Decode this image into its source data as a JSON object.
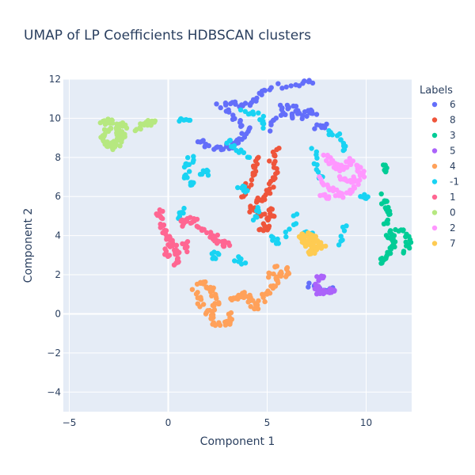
{
  "chart_data": {
    "type": "scatter",
    "title": "UMAP of LP Coefficients HDBSCAN clusters",
    "xlabel": "Component 1",
    "ylabel": "Component 2",
    "xlim": [
      -5.3,
      12.3
    ],
    "ylim": [
      -5,
      12
    ],
    "xticks": [
      -5,
      0,
      5,
      10
    ],
    "yticks": [
      -4,
      -2,
      0,
      2,
      4,
      6,
      8,
      10,
      12
    ],
    "grid": true,
    "legend": {
      "title": "Labels",
      "placement": "right"
    },
    "series": [
      {
        "name": "6",
        "color": "#636efa",
        "segments": [
          [
            [
              2.6,
              10.6
            ],
            [
              3.3,
              10.8
            ],
            [
              4.0,
              10.6
            ],
            [
              4.5,
              11.1
            ],
            [
              5.0,
              11.6
            ],
            [
              6.5,
              11.7
            ],
            [
              7.0,
              12.0
            ],
            [
              7.3,
              11.8
            ]
          ],
          [
            [
              5.8,
              10.7
            ],
            [
              6.2,
              10.5
            ],
            [
              7.0,
              10.4
            ],
            [
              7.5,
              10.2
            ]
          ],
          [
            [
              3.0,
              10.3
            ],
            [
              3.5,
              9.9
            ],
            [
              4.0,
              9.4
            ],
            [
              3.6,
              8.9
            ],
            [
              3.2,
              8.6
            ],
            [
              2.7,
              8.5
            ],
            [
              2.0,
              8.6
            ],
            [
              1.5,
              8.8
            ]
          ],
          [
            [
              5.0,
              9.5
            ],
            [
              5.7,
              10.3
            ],
            [
              6.3,
              10.1
            ],
            [
              7.0,
              10.1
            ]
          ],
          [
            [
              7.5,
              9.6
            ],
            [
              8.0,
              9.7
            ]
          ],
          [
            [
              7.1,
              1.5
            ],
            [
              7.7,
              1.1
            ],
            [
              8.3,
              1.2
            ]
          ]
        ]
      },
      {
        "name": "8",
        "color": "#ef553b",
        "segments": [
          [
            [
              5.5,
              8.4
            ],
            [
              5.2,
              7.9
            ],
            [
              5.4,
              7.3
            ],
            [
              5.2,
              6.6
            ],
            [
              5.0,
              6.1
            ],
            [
              4.5,
              5.8
            ],
            [
              4.2,
              5.3
            ],
            [
              4.9,
              5.0
            ],
            [
              5.0,
              4.5
            ],
            [
              4.6,
              4.3
            ]
          ],
          [
            [
              4.6,
              8.1
            ],
            [
              4.4,
              7.4
            ],
            [
              4.1,
              6.7
            ],
            [
              3.8,
              6.0
            ]
          ],
          [
            [
              5.3,
              5.4
            ],
            [
              5.2,
              5.0
            ]
          ]
        ]
      },
      {
        "name": "3",
        "color": "#00cc96",
        "segments": [
          [
            [
              10.8,
              6.0
            ],
            [
              11.0,
              5.6
            ],
            [
              11.1,
              5.0
            ],
            [
              10.9,
              4.6
            ]
          ],
          [
            [
              11.1,
              4.2
            ],
            [
              11.3,
              3.9
            ],
            [
              11.4,
              3.6
            ],
            [
              11.2,
              3.2
            ],
            [
              11.0,
              2.9
            ],
            [
              10.8,
              2.6
            ]
          ],
          [
            [
              11.6,
              4.4
            ],
            [
              12.0,
              4.0
            ],
            [
              12.2,
              3.6
            ],
            [
              11.9,
              3.2
            ]
          ],
          [
            [
              10.8,
              7.6
            ],
            [
              11.0,
              7.3
            ]
          ]
        ]
      },
      {
        "name": "5",
        "color": "#ab63fa",
        "segments": [
          [
            [
              7.4,
              1.5
            ],
            [
              7.6,
              1.1
            ],
            [
              7.9,
              1.1
            ],
            [
              8.2,
              1.1
            ],
            [
              8.4,
              1.2
            ]
          ],
          [
            [
              7.8,
              2.0
            ],
            [
              7.6,
              1.7
            ]
          ]
        ]
      },
      {
        "name": "4",
        "color": "#ffa15a",
        "segments": [
          [
            [
              1.5,
              1.7
            ],
            [
              1.9,
              1.5
            ],
            [
              2.2,
              1.1
            ],
            [
              2.5,
              0.7
            ],
            [
              2.3,
              0.3
            ],
            [
              2.1,
              -0.2
            ],
            [
              2.5,
              -0.5
            ],
            [
              3.1,
              -0.5
            ],
            [
              3.1,
              0.0
            ]
          ],
          [
            [
              1.3,
              1.1
            ],
            [
              1.6,
              0.7
            ],
            [
              1.9,
              0.0
            ]
          ],
          [
            [
              3.2,
              0.6
            ],
            [
              3.5,
              0.9
            ],
            [
              3.8,
              1.0
            ],
            [
              4.1,
              0.9
            ],
            [
              4.3,
              0.5
            ],
            [
              4.5,
              0.3
            ]
          ],
          [
            [
              4.6,
              0.6
            ],
            [
              5.0,
              1.0
            ],
            [
              5.3,
              1.4
            ],
            [
              5.6,
              1.8
            ],
            [
              5.9,
              2.3
            ],
            [
              6.0,
              2.0
            ]
          ],
          [
            [
              5.2,
              2.0
            ],
            [
              5.4,
              2.4
            ]
          ]
        ]
      },
      {
        "name": "-1",
        "color": "#19d3f3",
        "segments": [
          [
            [
              0.5,
              9.9
            ],
            [
              1.1,
              9.9
            ]
          ],
          [
            [
              1.2,
              8.1
            ],
            [
              1.0,
              7.6
            ],
            [
              0.9,
              7.0
            ],
            [
              1.2,
              6.6
            ]
          ],
          [
            [
              1.7,
              7.1
            ],
            [
              2.0,
              7.3
            ]
          ],
          [
            [
              0.5,
              5.0
            ],
            [
              0.8,
              5.4
            ]
          ],
          [
            [
              3.0,
              8.8
            ],
            [
              3.3,
              8.5
            ],
            [
              4.1,
              8.0
            ]
          ],
          [
            [
              4.6,
              5.4
            ],
            [
              4.3,
              4.8
            ]
          ],
          [
            [
              5.5,
              3.6
            ],
            [
              5.3,
              3.9
            ]
          ],
          [
            [
              3.6,
              6.5
            ],
            [
              4.0,
              6.3
            ]
          ],
          [
            [
              3.5,
              2.8
            ],
            [
              3.9,
              2.6
            ]
          ],
          [
            [
              2.2,
              2.9
            ],
            [
              2.5,
              3.1
            ]
          ],
          [
            [
              3.7,
              10.3
            ],
            [
              4.6,
              10.2
            ],
            [
              4.8,
              9.5
            ]
          ],
          [
            [
              7.3,
              8.4
            ],
            [
              7.6,
              7.3
            ],
            [
              7.8,
              7.0
            ]
          ],
          [
            [
              8.1,
              9.3
            ],
            [
              8.6,
              9.0
            ],
            [
              8.9,
              8.4
            ]
          ],
          [
            [
              9.8,
              6.0
            ],
            [
              10.0,
              5.9
            ]
          ],
          [
            [
              6.0,
              4.0
            ],
            [
              6.5,
              5.1
            ]
          ],
          [
            [
              8.7,
              3.5
            ],
            [
              9.0,
              4.5
            ]
          ],
          [
            [
              7.4,
              4.0
            ],
            [
              6.8,
              4.1
            ]
          ]
        ]
      },
      {
        "name": "1",
        "color": "#ff6692",
        "segments": [
          [
            [
              -0.4,
              5.4
            ],
            [
              -0.5,
              5.0
            ],
            [
              -0.3,
              4.5
            ],
            [
              -0.2,
              4.1
            ],
            [
              0.0,
              3.8
            ],
            [
              0.3,
              3.5
            ],
            [
              0.4,
              3.2
            ],
            [
              0.5,
              2.9
            ],
            [
              0.3,
              2.5
            ]
          ],
          [
            [
              0.6,
              4.6
            ],
            [
              0.9,
              4.8
            ],
            [
              1.4,
              4.7
            ],
            [
              1.8,
              4.3
            ],
            [
              2.3,
              3.9
            ],
            [
              2.5,
              3.7
            ],
            [
              2.8,
              3.6
            ],
            [
              3.1,
              3.5
            ]
          ],
          [
            [
              0.0,
              3.0
            ],
            [
              -0.1,
              3.2
            ]
          ],
          [
            [
              0.8,
              3.3
            ],
            [
              0.9,
              3.6
            ]
          ]
        ]
      },
      {
        "name": "0",
        "color": "#b6e880",
        "segments": [
          [
            [
              -3.3,
              9.7
            ],
            [
              -3.1,
              9.9
            ],
            [
              -2.8,
              9.6
            ],
            [
              -2.5,
              9.3
            ],
            [
              -2.3,
              9.2
            ],
            [
              -2.5,
              8.9
            ],
            [
              -2.8,
              8.6
            ],
            [
              -3.1,
              8.7
            ],
            [
              -3.3,
              9.1
            ],
            [
              -3.0,
              9.4
            ]
          ],
          [
            [
              -2.3,
              9.0
            ],
            [
              -2.8,
              8.4
            ]
          ],
          [
            [
              -1.6,
              9.5
            ],
            [
              -1.2,
              9.7
            ],
            [
              -0.9,
              9.8
            ],
            [
              -0.7,
              9.8
            ]
          ],
          [
            [
              -2.5,
              9.7
            ],
            [
              -2.1,
              9.5
            ]
          ]
        ]
      },
      {
        "name": "2",
        "color": "#ff97ff",
        "segments": [
          [
            [
              7.9,
              8.0
            ],
            [
              8.2,
              7.8
            ],
            [
              8.5,
              7.6
            ],
            [
              8.8,
              7.4
            ],
            [
              9.2,
              7.8
            ],
            [
              9.6,
              7.4
            ],
            [
              9.9,
              7.0
            ]
          ],
          [
            [
              7.6,
              6.9
            ],
            [
              8.0,
              6.5
            ],
            [
              8.4,
              6.2
            ],
            [
              8.9,
              6.0
            ],
            [
              9.3,
              6.3
            ],
            [
              9.6,
              6.8
            ]
          ],
          [
            [
              8.6,
              7.0
            ],
            [
              9.0,
              6.8
            ],
            [
              9.4,
              6.9
            ]
          ],
          [
            [
              7.8,
              6.2
            ],
            [
              8.1,
              5.9
            ]
          ]
        ]
      },
      {
        "name": "7",
        "color": "#fecb52",
        "segments": [
          [
            [
              6.6,
              4.0
            ],
            [
              6.9,
              3.8
            ],
            [
              7.2,
              3.6
            ],
            [
              7.6,
              3.3
            ],
            [
              7.8,
              3.5
            ],
            [
              7.5,
              3.8
            ],
            [
              7.2,
              4.0
            ],
            [
              6.9,
              3.7
            ],
            [
              7.1,
              3.3
            ],
            [
              7.4,
              3.1
            ]
          ],
          [
            [
              6.8,
              4.1
            ],
            [
              7.3,
              3.4
            ]
          ]
        ]
      }
    ]
  }
}
